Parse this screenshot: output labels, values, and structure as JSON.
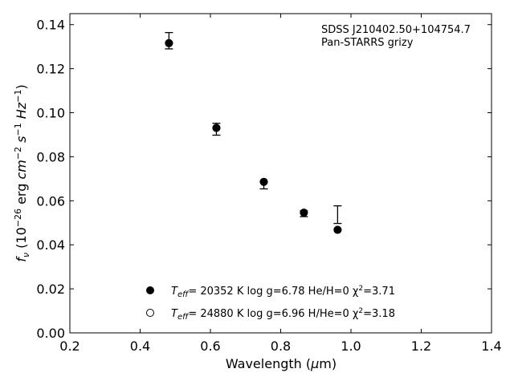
{
  "chart_data": {
    "type": "scatter",
    "annotation_lines": [
      "SDSS J210402.50+104754.7",
      "Pan-STARRS grizy"
    ],
    "xlabel": "Wavelength (μm)",
    "ylabel": "f_ν (10^-26 erg cm^-2 s^-1 Hz^-1)",
    "xlim": [
      0.2,
      1.4
    ],
    "ylim": [
      0.0,
      0.145
    ],
    "x_ticks": [
      0.2,
      0.4,
      0.6,
      0.8,
      1.0,
      1.2,
      1.4
    ],
    "x_tick_labels": [
      "0.2",
      "0.4",
      "0.6",
      "0.8",
      "1.0",
      "1.2",
      "1.4"
    ],
    "y_ticks": [
      0.0,
      0.02,
      0.04,
      0.06,
      0.08,
      0.1,
      0.12,
      0.14
    ],
    "y_tick_labels": [
      "0.00",
      "0.02",
      "0.04",
      "0.06",
      "0.08",
      "0.10",
      "0.12",
      "0.14"
    ],
    "grid": false,
    "legend_position": "bottom-center",
    "observed": {
      "x": [
        0.482,
        0.617,
        0.752,
        0.866,
        0.962
      ],
      "y": [
        0.1327,
        0.0925,
        0.0671,
        0.0541,
        0.0537
      ],
      "yerr": [
        0.0037,
        0.0027,
        0.0017,
        0.0013,
        0.004
      ]
    },
    "series": [
      {
        "label_parts": [
          "T",
          "eff",
          "= 20352 K  log g=6.78  He/H=0  χ",
          "2",
          "=3.71"
        ],
        "marker": "filled-circle",
        "x": [
          0.482,
          0.617,
          0.752,
          0.866,
          0.962
        ],
        "y": [
          0.1316,
          0.0931,
          0.0686,
          0.0546,
          0.0468
        ]
      },
      {
        "label_parts": [
          "T",
          "eff",
          "= 24880 K  log g=6.96  H/He=0  χ",
          "2",
          "=3.18"
        ],
        "marker": "open-circle",
        "x": [
          0.482,
          0.617,
          0.752,
          0.866,
          0.962
        ],
        "y": [
          0.1316,
          0.0931,
          0.0686,
          0.0546,
          0.0468
        ]
      }
    ]
  }
}
